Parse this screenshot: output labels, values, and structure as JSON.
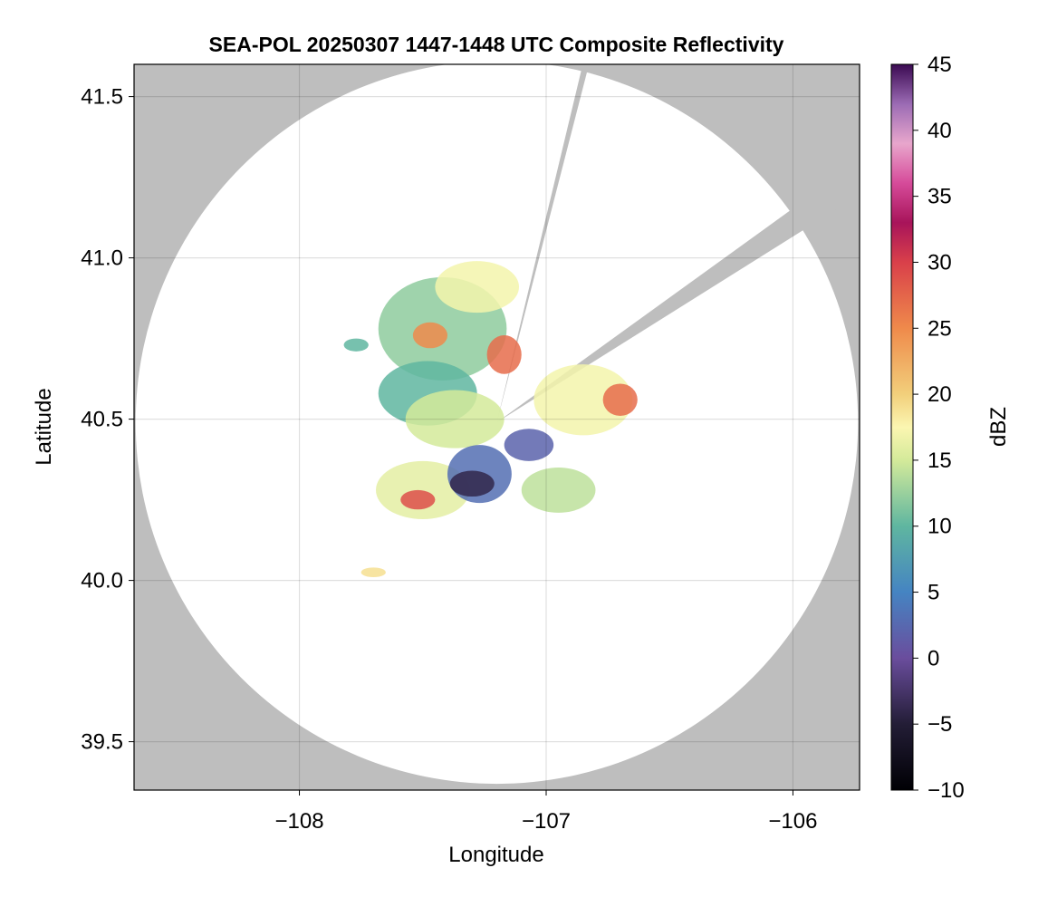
{
  "chart_data": {
    "type": "heatmap",
    "title": "SEA-POL 20250307 1447-1448 UTC Composite Reflectivity",
    "xlabel": "Longitude",
    "ylabel": "Latitude",
    "xlim": [
      -108.67,
      -105.73
    ],
    "ylim": [
      39.35,
      41.6
    ],
    "xticks": [
      {
        "value": -108,
        "label": "−108"
      },
      {
        "value": -107,
        "label": "−107"
      },
      {
        "value": -106,
        "label": "−106"
      }
    ],
    "yticks": [
      {
        "value": 39.5,
        "label": "39.5"
      },
      {
        "value": 40.0,
        "label": "40.0"
      },
      {
        "value": 40.5,
        "label": "40.5"
      },
      {
        "value": 41.0,
        "label": "41.0"
      },
      {
        "value": 41.5,
        "label": "41.5"
      }
    ],
    "grid": true,
    "background_color": "#bebebe",
    "radar_center": {
      "lon": -107.2,
      "lat": 40.49
    },
    "radar_range_deg_lat": 1.12,
    "blocked_sectors": [
      {
        "edge_a": {
          "lon": -107.04,
          "lat": 41.0
        },
        "edge_b": {
          "lon": -106.85,
          "lat": 41.53
        }
      },
      {
        "edge_a": {
          "lon": -106.06,
          "lat": 41.12
        },
        "edge_b": {
          "lon": -106.7,
          "lat": 40.73
        }
      }
    ],
    "colorbar": {
      "label": "dBZ",
      "min": -10,
      "max": 45,
      "ticks": [
        {
          "value": -10,
          "label": "−10"
        },
        {
          "value": -5,
          "label": "−5"
        },
        {
          "value": 0,
          "label": "0"
        },
        {
          "value": 5,
          "label": "5"
        },
        {
          "value": 10,
          "label": "10"
        },
        {
          "value": 15,
          "label": "15"
        },
        {
          "value": 20,
          "label": "20"
        },
        {
          "value": 25,
          "label": "25"
        },
        {
          "value": 30,
          "label": "30"
        },
        {
          "value": 35,
          "label": "35"
        },
        {
          "value": 40,
          "label": "40"
        },
        {
          "value": 45,
          "label": "45"
        }
      ],
      "stops": [
        {
          "value": -10,
          "color": "#000004"
        },
        {
          "value": -5,
          "color": "#231d36"
        },
        {
          "value": 0,
          "color": "#6a4d9d"
        },
        {
          "value": 5,
          "color": "#4584c2"
        },
        {
          "value": 10,
          "color": "#5fb6a0"
        },
        {
          "value": 15,
          "color": "#d4ea9a"
        },
        {
          "value": 17.5,
          "color": "#fbf6b1"
        },
        {
          "value": 20,
          "color": "#f2cf7b"
        },
        {
          "value": 25,
          "color": "#ef8a4b"
        },
        {
          "value": 30,
          "color": "#d9404a"
        },
        {
          "value": 33,
          "color": "#a8145a"
        },
        {
          "value": 36,
          "color": "#d64b9a"
        },
        {
          "value": 39,
          "color": "#e8a6cc"
        },
        {
          "value": 42,
          "color": "#9b6bb4"
        },
        {
          "value": 45,
          "color": "#3b0a52"
        }
      ]
    },
    "echo_regions": [
      {
        "name": "north-cell",
        "lon": -107.42,
        "lat": 40.78,
        "rlon": 0.26,
        "rlat": 0.16,
        "dbz": 12
      },
      {
        "name": "north-core",
        "lon": -107.47,
        "lat": 40.76,
        "rlon": 0.07,
        "rlat": 0.04,
        "dbz": 25
      },
      {
        "name": "north-east-core",
        "lon": -107.17,
        "lat": 40.7,
        "rlon": 0.07,
        "rlat": 0.06,
        "dbz": 27
      },
      {
        "name": "north-top",
        "lon": -107.28,
        "lat": 40.91,
        "rlon": 0.17,
        "rlat": 0.08,
        "dbz": 17
      },
      {
        "name": "west-band",
        "lon": -107.48,
        "lat": 40.58,
        "rlon": 0.2,
        "rlat": 0.1,
        "dbz": 10
      },
      {
        "name": "center",
        "lon": -107.37,
        "lat": 40.5,
        "rlon": 0.2,
        "rlat": 0.09,
        "dbz": 15
      },
      {
        "name": "south-west-cell",
        "lon": -107.5,
        "lat": 40.28,
        "rlon": 0.19,
        "rlat": 0.09,
        "dbz": 16
      },
      {
        "name": "south-west-core",
        "lon": -107.52,
        "lat": 40.25,
        "rlon": 0.07,
        "rlat": 0.03,
        "dbz": 29
      },
      {
        "name": "south-center",
        "lon": -107.27,
        "lat": 40.33,
        "rlon": 0.13,
        "rlat": 0.09,
        "dbz": 3
      },
      {
        "name": "south-center-band",
        "lon": -107.3,
        "lat": 40.3,
        "rlon": 0.09,
        "rlat": 0.04,
        "dbz": -4
      },
      {
        "name": "east-cell",
        "lon": -106.85,
        "lat": 40.56,
        "rlon": 0.2,
        "rlat": 0.11,
        "dbz": 17
      },
      {
        "name": "east-core",
        "lon": -106.7,
        "lat": 40.56,
        "rlon": 0.07,
        "rlat": 0.05,
        "dbz": 27
      },
      {
        "name": "south-east-band",
        "lon": -106.95,
        "lat": 40.28,
        "rlon": 0.15,
        "rlat": 0.07,
        "dbz": 14
      },
      {
        "name": "near-radar-east",
        "lon": -107.07,
        "lat": 40.42,
        "rlon": 0.1,
        "rlat": 0.05,
        "dbz": 2
      },
      {
        "name": "small-cell",
        "lon": -107.7,
        "lat": 40.025,
        "rlon": 0.05,
        "rlat": 0.015,
        "dbz": 19
      },
      {
        "name": "west-fragment",
        "lon": -107.77,
        "lat": 40.73,
        "rlon": 0.05,
        "rlat": 0.02,
        "dbz": 10
      }
    ]
  }
}
